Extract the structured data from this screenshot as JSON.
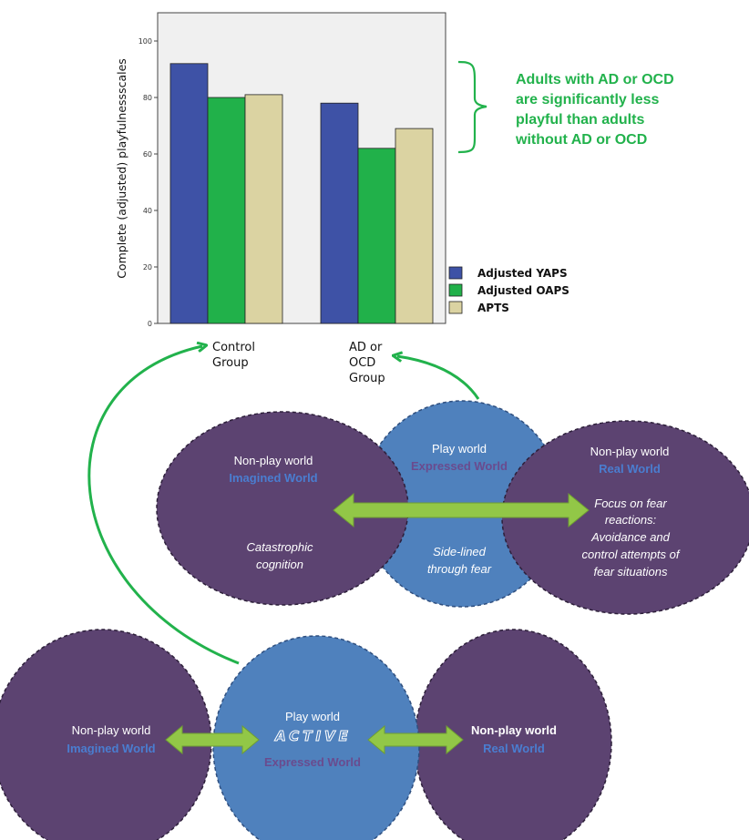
{
  "chart_data": {
    "type": "bar",
    "categories": [
      [
        "Control",
        "Group"
      ],
      [
        "AD or",
        "OCD",
        "Group"
      ]
    ],
    "series": [
      {
        "name": "Adjusted YAPS",
        "color": "#3e52a6",
        "values": [
          92,
          78
        ]
      },
      {
        "name": "Adjusted OAPS",
        "color": "#21b14a",
        "values": [
          80,
          62
        ]
      },
      {
        "name": "APTS",
        "color": "#dbd3a2",
        "values": [
          81,
          69
        ]
      }
    ],
    "ylabel": "Complete (adjusted) playfulnessscales",
    "ylim": [
      0,
      110
    ],
    "yticks": [
      "0",
      "20",
      "40",
      "60",
      "80",
      "100"
    ],
    "legend_position": "right-bottom"
  },
  "annotation": {
    "lines": [
      "Adults with AD or OCD",
      "are significantly less",
      "playful than adults",
      "without AD or OCD"
    ],
    "color": "#22b24c"
  },
  "diagram": {
    "top": {
      "left": {
        "title": "Non-play world",
        "subtitle": "Imagined World",
        "body": [
          "Catastrophic",
          "cognition"
        ]
      },
      "center": {
        "title": "Play world",
        "subtitle": "Expressed World",
        "body": [
          "Side-lined",
          "through fear"
        ]
      },
      "right": {
        "title": "Non-play world",
        "subtitle": "Real World",
        "body": [
          "Focus on fear",
          "reactions:",
          "Avoidance and",
          "control attempts of",
          "fear situations"
        ]
      }
    },
    "bottom": {
      "left": {
        "title": "Non-play world",
        "subtitle": "Imagined World"
      },
      "center": {
        "title": "Play world",
        "badge": "ACTIVE",
        "subtitle": "Expressed World"
      },
      "right": {
        "title": "Non-play world",
        "subtitle": "Real World"
      }
    },
    "colors": {
      "purple": "#5c4371",
      "blue": "#4f81bd",
      "arrow_green": "#92c747",
      "curve_green": "#22b24c"
    }
  }
}
